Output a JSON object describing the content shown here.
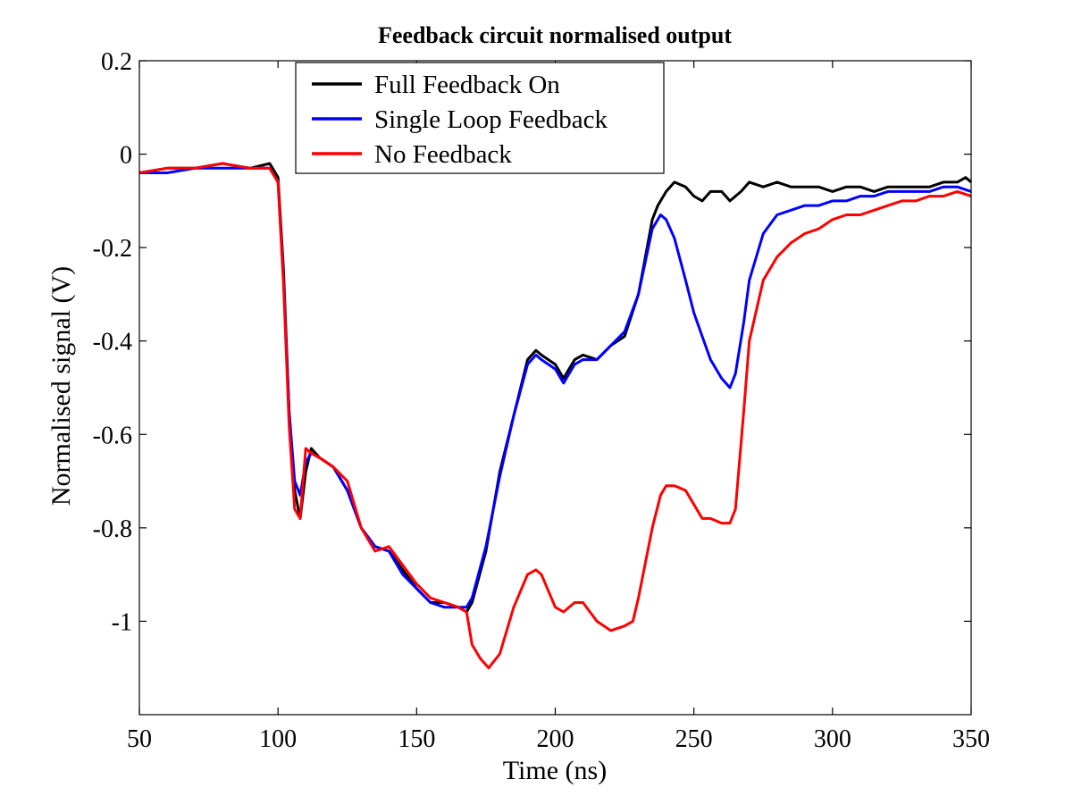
{
  "chart_data": {
    "type": "line",
    "title": "Feedback circuit normalised output",
    "xlabel": "Time (ns)",
    "ylabel": "Normalised signal (V)",
    "xlim": [
      50,
      350
    ],
    "ylim": [
      -1.2,
      0.2
    ],
    "xticks": [
      50,
      100,
      150,
      200,
      250,
      300,
      350
    ],
    "yticks": [
      0.2,
      0,
      -0.2,
      -0.4,
      -0.6,
      -0.8,
      -1
    ],
    "ytick_labels": [
      "0.2",
      "0",
      "-0.2",
      "-0.4",
      "-0.6",
      "-0.8",
      "-1"
    ],
    "grid": false,
    "legend_position": "top-left",
    "series": [
      {
        "name": "Full Feedback On",
        "color": "#000000",
        "x": [
          50,
          60,
          70,
          80,
          90,
          97,
          100,
          102,
          104,
          106,
          108,
          110,
          112,
          115,
          120,
          125,
          130,
          135,
          140,
          145,
          150,
          155,
          160,
          165,
          168,
          170,
          175,
          180,
          185,
          190,
          193,
          195,
          200,
          203,
          207,
          210,
          215,
          220,
          225,
          230,
          235,
          237,
          240,
          243,
          247,
          250,
          253,
          256,
          260,
          263,
          267,
          270,
          275,
          280,
          285,
          290,
          295,
          300,
          305,
          310,
          315,
          320,
          325,
          330,
          335,
          340,
          345,
          348,
          350
        ],
        "y": [
          -0.04,
          -0.03,
          -0.03,
          -0.02,
          -0.03,
          -0.02,
          -0.05,
          -0.25,
          -0.55,
          -0.72,
          -0.78,
          -0.68,
          -0.63,
          -0.65,
          -0.67,
          -0.72,
          -0.8,
          -0.84,
          -0.85,
          -0.89,
          -0.93,
          -0.96,
          -0.96,
          -0.97,
          -0.98,
          -0.96,
          -0.85,
          -0.68,
          -0.56,
          -0.44,
          -0.42,
          -0.43,
          -0.45,
          -0.48,
          -0.44,
          -0.43,
          -0.44,
          -0.41,
          -0.39,
          -0.3,
          -0.14,
          -0.11,
          -0.08,
          -0.06,
          -0.07,
          -0.09,
          -0.1,
          -0.08,
          -0.08,
          -0.1,
          -0.08,
          -0.06,
          -0.07,
          -0.06,
          -0.07,
          -0.07,
          -0.07,
          -0.08,
          -0.07,
          -0.07,
          -0.08,
          -0.07,
          -0.07,
          -0.07,
          -0.07,
          -0.06,
          -0.06,
          -0.05,
          -0.06
        ]
      },
      {
        "name": "Single Loop Feedback",
        "color": "#0000ff",
        "x": [
          50,
          60,
          70,
          80,
          90,
          97,
          100,
          102,
          104,
          106,
          108,
          110,
          112,
          115,
          120,
          125,
          130,
          135,
          140,
          145,
          150,
          155,
          160,
          165,
          168,
          170,
          175,
          180,
          185,
          190,
          193,
          195,
          200,
          203,
          207,
          210,
          215,
          220,
          225,
          230,
          235,
          238,
          240,
          243,
          247,
          250,
          253,
          256,
          260,
          263,
          265,
          268,
          270,
          275,
          280,
          285,
          290,
          295,
          300,
          305,
          310,
          315,
          320,
          325,
          330,
          335,
          340,
          345,
          350
        ],
        "y": [
          -0.04,
          -0.04,
          -0.03,
          -0.03,
          -0.03,
          -0.03,
          -0.06,
          -0.27,
          -0.55,
          -0.7,
          -0.73,
          -0.66,
          -0.64,
          -0.65,
          -0.67,
          -0.72,
          -0.8,
          -0.84,
          -0.85,
          -0.9,
          -0.93,
          -0.96,
          -0.97,
          -0.97,
          -0.97,
          -0.95,
          -0.84,
          -0.69,
          -0.56,
          -0.45,
          -0.43,
          -0.44,
          -0.46,
          -0.49,
          -0.45,
          -0.44,
          -0.44,
          -0.41,
          -0.38,
          -0.3,
          -0.16,
          -0.13,
          -0.14,
          -0.18,
          -0.27,
          -0.34,
          -0.39,
          -0.44,
          -0.48,
          -0.5,
          -0.47,
          -0.36,
          -0.27,
          -0.17,
          -0.13,
          -0.12,
          -0.11,
          -0.11,
          -0.1,
          -0.1,
          -0.09,
          -0.09,
          -0.08,
          -0.08,
          -0.08,
          -0.08,
          -0.07,
          -0.07,
          -0.08
        ]
      },
      {
        "name": "No Feedback",
        "color": "#ff0000",
        "x": [
          50,
          60,
          70,
          80,
          90,
          97,
          100,
          102,
          104,
          106,
          108,
          110,
          112,
          115,
          120,
          125,
          130,
          135,
          140,
          145,
          150,
          155,
          160,
          165,
          168,
          170,
          173,
          176,
          180,
          185,
          190,
          193,
          195,
          200,
          203,
          207,
          210,
          215,
          220,
          225,
          228,
          230,
          235,
          238,
          240,
          243,
          247,
          250,
          253,
          256,
          260,
          263,
          265,
          268,
          270,
          275,
          280,
          285,
          290,
          295,
          300,
          305,
          310,
          315,
          320,
          325,
          330,
          335,
          340,
          345,
          350
        ],
        "y": [
          -0.04,
          -0.03,
          -0.03,
          -0.02,
          -0.03,
          -0.03,
          -0.06,
          -0.28,
          -0.58,
          -0.76,
          -0.78,
          -0.63,
          -0.64,
          -0.65,
          -0.67,
          -0.7,
          -0.8,
          -0.85,
          -0.84,
          -0.88,
          -0.92,
          -0.95,
          -0.96,
          -0.97,
          -0.98,
          -1.05,
          -1.08,
          -1.1,
          -1.07,
          -0.97,
          -0.9,
          -0.89,
          -0.9,
          -0.97,
          -0.98,
          -0.96,
          -0.96,
          -1.0,
          -1.02,
          -1.01,
          -1.0,
          -0.95,
          -0.8,
          -0.73,
          -0.71,
          -0.71,
          -0.72,
          -0.75,
          -0.78,
          -0.78,
          -0.79,
          -0.79,
          -0.76,
          -0.55,
          -0.4,
          -0.27,
          -0.22,
          -0.19,
          -0.17,
          -0.16,
          -0.14,
          -0.13,
          -0.13,
          -0.12,
          -0.11,
          -0.1,
          -0.1,
          -0.09,
          -0.09,
          -0.08,
          -0.09
        ]
      }
    ]
  }
}
